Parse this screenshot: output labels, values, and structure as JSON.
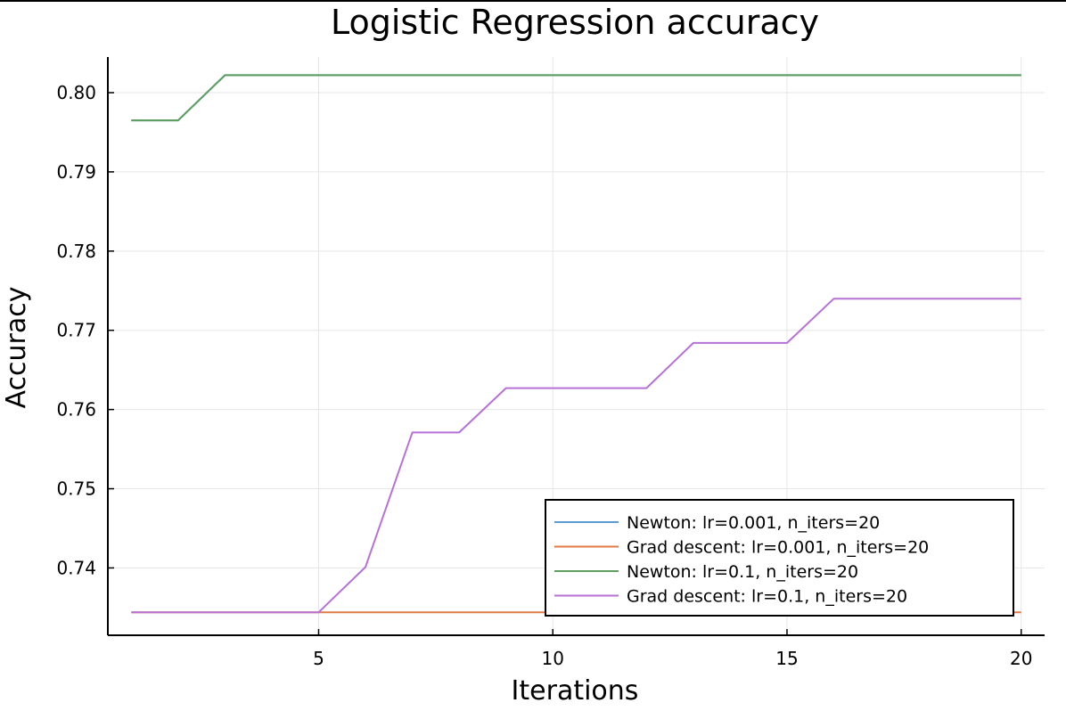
{
  "chart_data": {
    "type": "line",
    "title": "Logistic Regression accuracy",
    "xlabel": "Iterations",
    "ylabel": "Accuracy",
    "xlim": [
      0.5,
      20.5
    ],
    "ylim": [
      0.7315,
      0.8045
    ],
    "xticks": [
      5,
      10,
      15,
      20
    ],
    "xtick_labels": [
      "5",
      "10",
      "15",
      "20"
    ],
    "yticks": [
      0.74,
      0.75,
      0.76,
      0.77,
      0.78,
      0.79,
      0.8
    ],
    "ytick_labels": [
      "0.74",
      "0.75",
      "0.76",
      "0.77",
      "0.78",
      "0.79",
      "0.80"
    ],
    "grid": true,
    "legend_position": "bottom-right",
    "x": [
      1,
      2,
      3,
      4,
      5,
      6,
      7,
      8,
      9,
      10,
      11,
      12,
      13,
      14,
      15,
      16,
      17,
      18,
      19,
      20
    ],
    "series": [
      {
        "name": "Newton: lr=0.001, n_iters=20",
        "color": "#5b9bd5",
        "values": [
          0.7965,
          0.7965,
          0.8022,
          0.8022,
          0.8022,
          0.8022,
          0.8022,
          0.8022,
          0.8022,
          0.8022,
          0.8022,
          0.8022,
          0.8022,
          0.8022,
          0.8022,
          0.8022,
          0.8022,
          0.8022,
          0.8022,
          0.8022
        ]
      },
      {
        "name": "Grad descent: lr=0.001, n_iters=20",
        "color": "#e07b45",
        "values": [
          0.7344,
          0.7344,
          0.7344,
          0.7344,
          0.7344,
          0.7344,
          0.7344,
          0.7344,
          0.7344,
          0.7344,
          0.7344,
          0.7344,
          0.7344,
          0.7344,
          0.7344,
          0.7344,
          0.7344,
          0.7344,
          0.7344,
          0.7344
        ]
      },
      {
        "name": "Newton: lr=0.1, n_iters=20",
        "color": "#5e9e5e",
        "values": [
          0.7965,
          0.7965,
          0.8022,
          0.8022,
          0.8022,
          0.8022,
          0.8022,
          0.8022,
          0.8022,
          0.8022,
          0.8022,
          0.8022,
          0.8022,
          0.8022,
          0.8022,
          0.8022,
          0.8022,
          0.8022,
          0.8022,
          0.8022
        ]
      },
      {
        "name": "Grad descent: lr=0.1, n_iters=20",
        "color": "#b771d6",
        "values": [
          0.7344,
          0.7344,
          0.7344,
          0.7344,
          0.7344,
          0.7401,
          0.7571,
          0.7571,
          0.7627,
          0.7627,
          0.7627,
          0.7627,
          0.7684,
          0.7684,
          0.7684,
          0.774,
          0.774,
          0.774,
          0.774,
          0.774
        ]
      }
    ]
  }
}
